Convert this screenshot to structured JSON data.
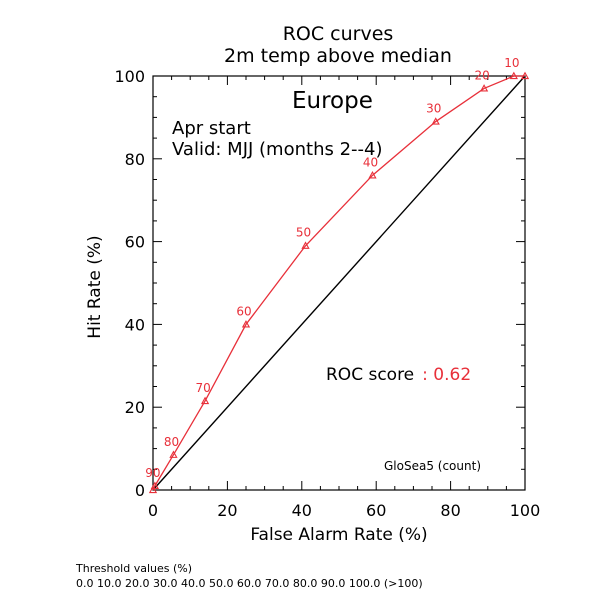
{
  "colors": {
    "axis": "#000000",
    "curve": "#e8303a",
    "background": "#ffffff"
  },
  "footer": {
    "threshold_title": "Threshold values (%)",
    "threshold_values": "0.0 10.0 20.0 30.0 40.0 50.0 60.0 70.0 80.0 90.0 100.0 (>100)"
  },
  "chart_data": {
    "type": "line",
    "title": "ROC curves",
    "subtitle": "2m temp above median",
    "region": "Europe",
    "start": "Apr start",
    "valid": "Valid: MJJ (months 2--4)",
    "xlabel": "False Alarm Rate (%)",
    "ylabel": "Hit Rate (%)",
    "xlim": [
      0,
      100
    ],
    "ylim": [
      0,
      100
    ],
    "xticks": [
      "0",
      "20",
      "40",
      "60",
      "80",
      "100"
    ],
    "yticks": [
      "0",
      "20",
      "40",
      "60",
      "80",
      "100"
    ],
    "score_label": "ROC score",
    "score_value": ": 0.62",
    "model_label": "GloSea5 (count)",
    "series": [
      {
        "x": [
          0,
          0.5,
          5.5,
          14,
          25,
          41,
          59,
          76,
          89,
          97,
          100
        ],
        "y": [
          0,
          1,
          8.5,
          21.5,
          40,
          59,
          76,
          89,
          97,
          100,
          100
        ],
        "labels": [
          "",
          "90",
          "80",
          "70",
          "60",
          "50",
          "40",
          "30",
          "20",
          "10",
          ""
        ],
        "color": "#e8303a"
      }
    ],
    "diagonal": {
      "x": [
        0,
        100
      ],
      "y": [
        0,
        100
      ],
      "color": "#000000"
    },
    "grid": false
  }
}
